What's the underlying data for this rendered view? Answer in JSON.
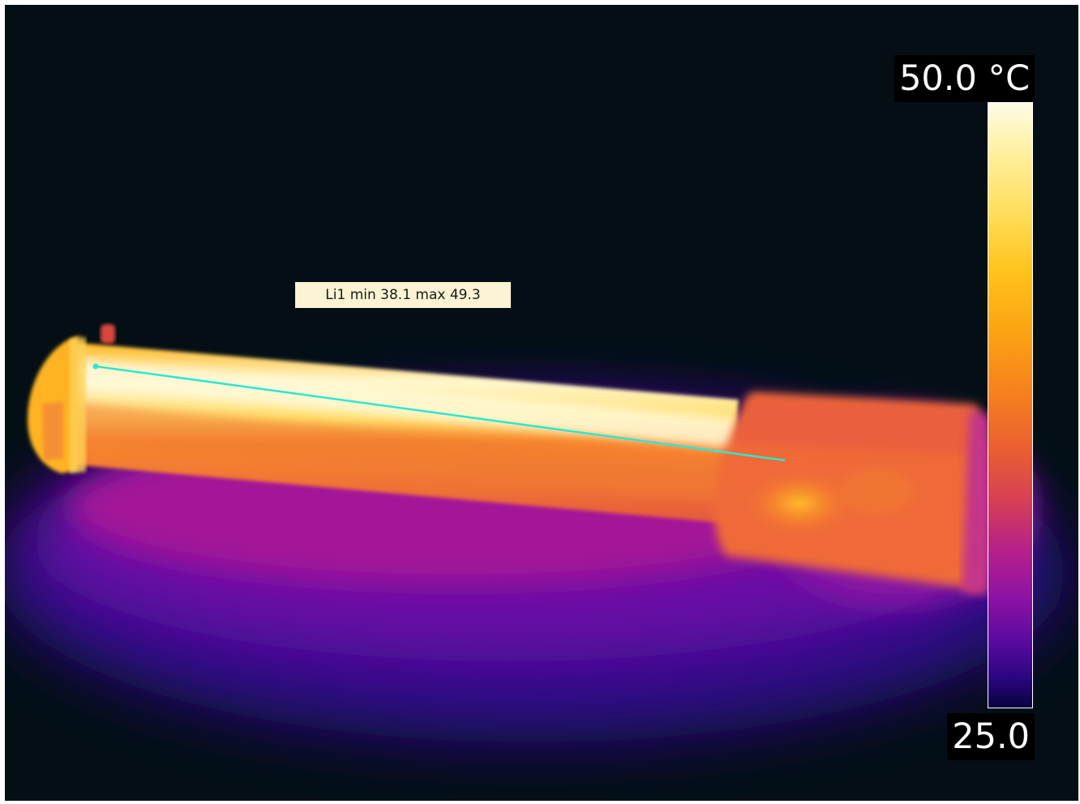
{
  "measurement": {
    "line_label": "Li1 min 38.1 max 49.3",
    "line_name": "Li1",
    "min": 38.1,
    "max": 49.3,
    "line_color": "#2ee6d2"
  },
  "scale": {
    "max_label": "50.0 °C",
    "min_label": "25.0",
    "max": 50.0,
    "min": 25.0,
    "unit": "°C",
    "palette": "iron"
  },
  "colors": {
    "background": "#030f14",
    "label_bg": "#fbf3d3"
  }
}
